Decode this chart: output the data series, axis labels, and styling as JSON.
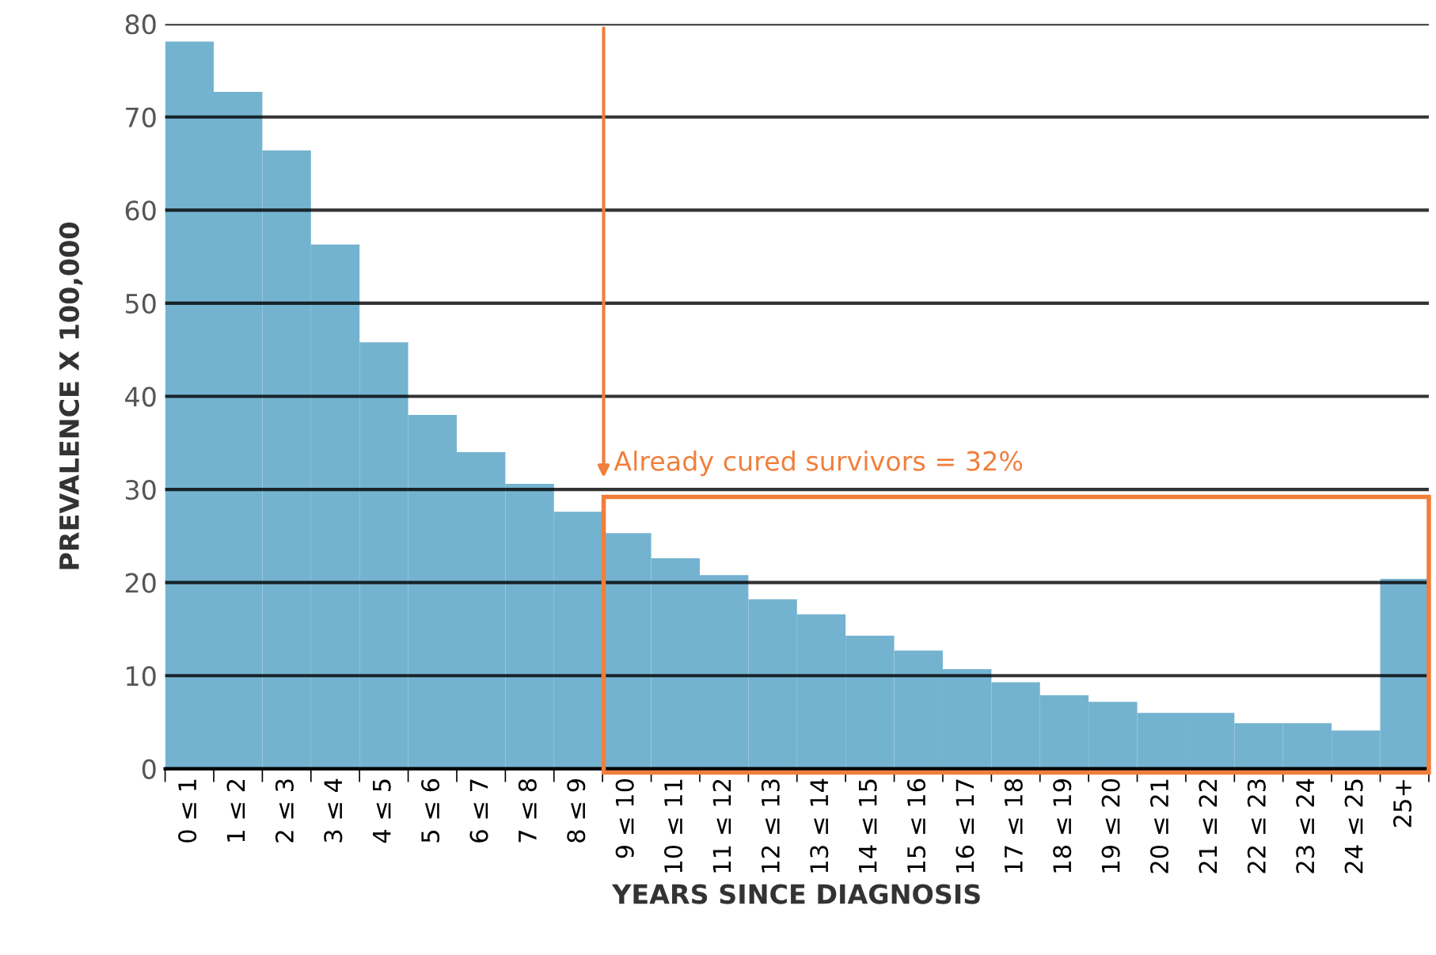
{
  "chart_data": {
    "type": "bar",
    "xlabel": "YEARS SINCE DIAGNOSIS",
    "ylabel": "PREVALENCE X 100,000",
    "categories": [
      "0 ≤ 1",
      "1 ≤ 2",
      "2 ≤ 3",
      "3 ≤ 4",
      "4 ≤ 5",
      "5 ≤ 6",
      "6 ≤ 7",
      "7 ≤ 8",
      "8 ≤ 9",
      "9 ≤ 10",
      "10 ≤ 11",
      "11 ≤ 12",
      "12 ≤ 13",
      "13 ≤ 14",
      "14 ≤ 15",
      "15 ≤ 16",
      "16 ≤ 17",
      "17 ≤ 18",
      "18 ≤ 19",
      "19 ≤ 20",
      "20 ≤ 21",
      "21 ≤ 22",
      "22 ≤ 23",
      "23 ≤ 24",
      "24 ≤ 25",
      "25+"
    ],
    "values": [
      78.1,
      72.7,
      66.4,
      56.3,
      45.8,
      38,
      34,
      30.6,
      27.6,
      25.3,
      22.6,
      20.8,
      18.2,
      16.6,
      14.3,
      12.7,
      10.7,
      9.3,
      7.9,
      7.2,
      6,
      6,
      4.9,
      4.9,
      4.1,
      20.4
    ],
    "color": "#74b3d0",
    "ylim": [
      0,
      80
    ],
    "yticks": [
      0,
      10,
      20,
      30,
      40,
      50,
      60,
      70,
      80
    ],
    "grid": "y",
    "legend": false,
    "annotations": [
      "Already cured survivors = 32%"
    ]
  }
}
